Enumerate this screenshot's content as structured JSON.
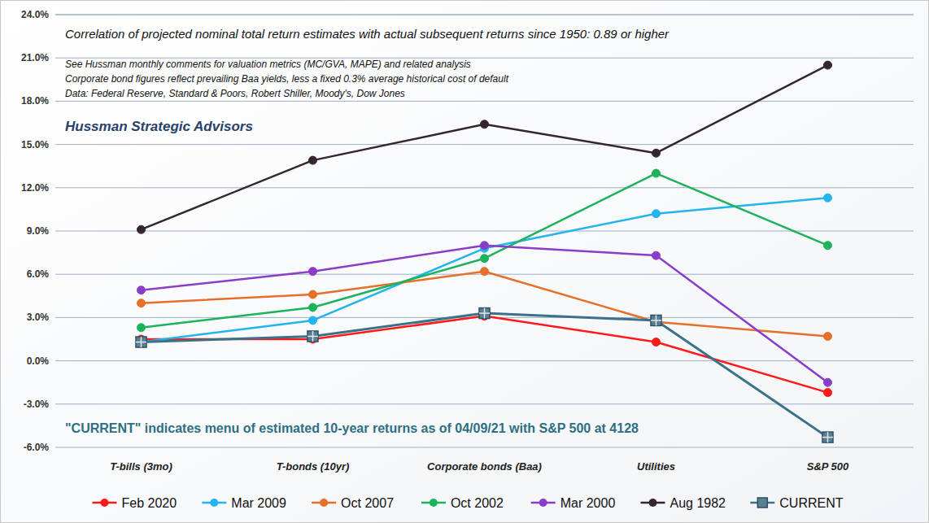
{
  "chart_data": {
    "type": "line",
    "title": "Correlation of projected nominal total return estimates with actual subsequent returns since 1950: 0.89 or higher",
    "annotations": [
      "See Hussman monthly comments for valuation metrics (MC/GVA, MAPE) and related analysis",
      "Corporate bond figures reflect prevailing Baa yields, less a fixed 0.3% average historical cost of default",
      "Data: Federal Reserve, Standard & Poors, Robert Shiller, Moody's, Dow Jones",
      "Hussman Strategic Advisors",
      "\"CURRENT\" indicates menu of estimated 10-year returns as of 04/09/21 with S&P 500 at 4128"
    ],
    "categories": [
      "T-bills (3mo)",
      "T-bonds (10yr)",
      "Corporate bonds (Baa)",
      "Utilities",
      "S&P 500"
    ],
    "series": [
      {
        "name": "Feb 2020",
        "color": "#ff1a1a",
        "marker": "circle",
        "line_style": "solid",
        "values": [
          1.5,
          1.5,
          3.1,
          1.3,
          -2.2
        ]
      },
      {
        "name": "Mar 2009",
        "color": "#22b4ec",
        "marker": "circle",
        "line_style": "solid",
        "values": [
          1.3,
          2.8,
          7.8,
          10.2,
          11.3
        ]
      },
      {
        "name": "Oct 2007",
        "color": "#e5702a",
        "marker": "circle",
        "line_style": "solid",
        "values": [
          4.0,
          4.6,
          6.2,
          2.7,
          1.7
        ]
      },
      {
        "name": "Oct 2002",
        "color": "#1db35c",
        "marker": "circle",
        "line_style": "solid",
        "values": [
          2.3,
          3.7,
          7.1,
          13.0,
          8.0
        ]
      },
      {
        "name": "Mar 2000",
        "color": "#8a3ec8",
        "marker": "circle",
        "line_style": "solid",
        "values": [
          4.9,
          6.2,
          8.0,
          7.3,
          -1.5
        ]
      },
      {
        "name": "Aug 1982",
        "color": "#34262e",
        "marker": "circle",
        "line_style": "solid",
        "values": [
          9.1,
          13.9,
          16.4,
          14.4,
          20.5
        ]
      },
      {
        "name": "CURRENT",
        "color": "#3b7189",
        "marker": "square",
        "line_style": "solid",
        "values": [
          1.3,
          1.7,
          3.3,
          2.8,
          -5.3
        ]
      }
    ],
    "ylim": [
      -6,
      24
    ],
    "yticks": [
      {
        "value": -6,
        "label": "-6.0%"
      },
      {
        "value": -3,
        "label": "-3.0%"
      },
      {
        "value": 0,
        "label": "0.0%"
      },
      {
        "value": 3,
        "label": "3.0%"
      },
      {
        "value": 6,
        "label": "6.0%"
      },
      {
        "value": 9,
        "label": "9.0%"
      },
      {
        "value": 12,
        "label": "12.0%"
      },
      {
        "value": 15,
        "label": "15.0%"
      },
      {
        "value": 18,
        "label": "18.0%"
      },
      {
        "value": 21,
        "label": "21.0%"
      },
      {
        "value": 24,
        "label": "24.0%"
      }
    ],
    "grid": true,
    "legend": "bottom"
  }
}
